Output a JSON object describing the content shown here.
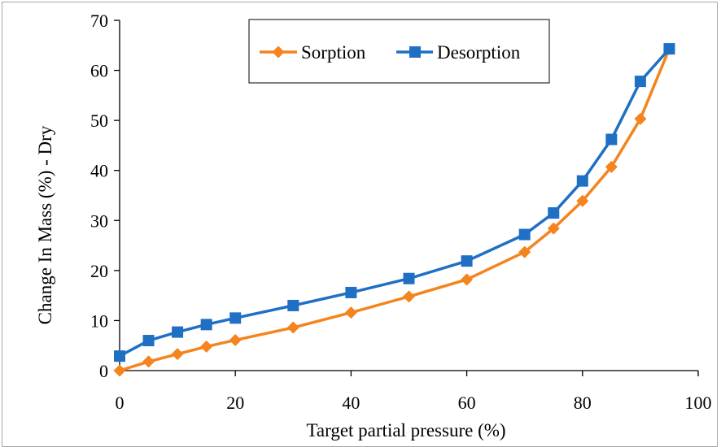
{
  "chart_data": {
    "type": "line",
    "title": "",
    "xlabel": "Target partial pressure (%)",
    "ylabel": "Change In Mass (%) - Dry",
    "xlim": [
      0,
      100
    ],
    "ylim": [
      0,
      70
    ],
    "xticks": [
      0,
      20,
      40,
      60,
      80,
      100
    ],
    "yticks": [
      0,
      10,
      20,
      30,
      40,
      50,
      60,
      70
    ],
    "grid": false,
    "legend": "top-right",
    "series": [
      {
        "name": "Sorption",
        "color": "#f4841e",
        "marker": "diamond",
        "x": [
          0,
          5,
          10,
          15,
          20,
          30,
          40,
          50,
          60,
          70,
          75,
          80,
          85,
          90,
          95
        ],
        "y": [
          0,
          1.8,
          3.3,
          4.8,
          6.1,
          8.6,
          11.6,
          14.8,
          18.2,
          23.7,
          28.4,
          33.9,
          40.7,
          50.3,
          64.3
        ]
      },
      {
        "name": "Desorption",
        "color": "#1f6fc4",
        "marker": "square",
        "x": [
          0,
          5,
          10,
          15,
          20,
          30,
          40,
          50,
          60,
          70,
          75,
          80,
          85,
          90,
          95
        ],
        "y": [
          2.9,
          6.0,
          7.7,
          9.2,
          10.5,
          13.0,
          15.6,
          18.4,
          21.9,
          27.2,
          31.5,
          37.9,
          46.2,
          57.8,
          64.3
        ]
      }
    ]
  }
}
